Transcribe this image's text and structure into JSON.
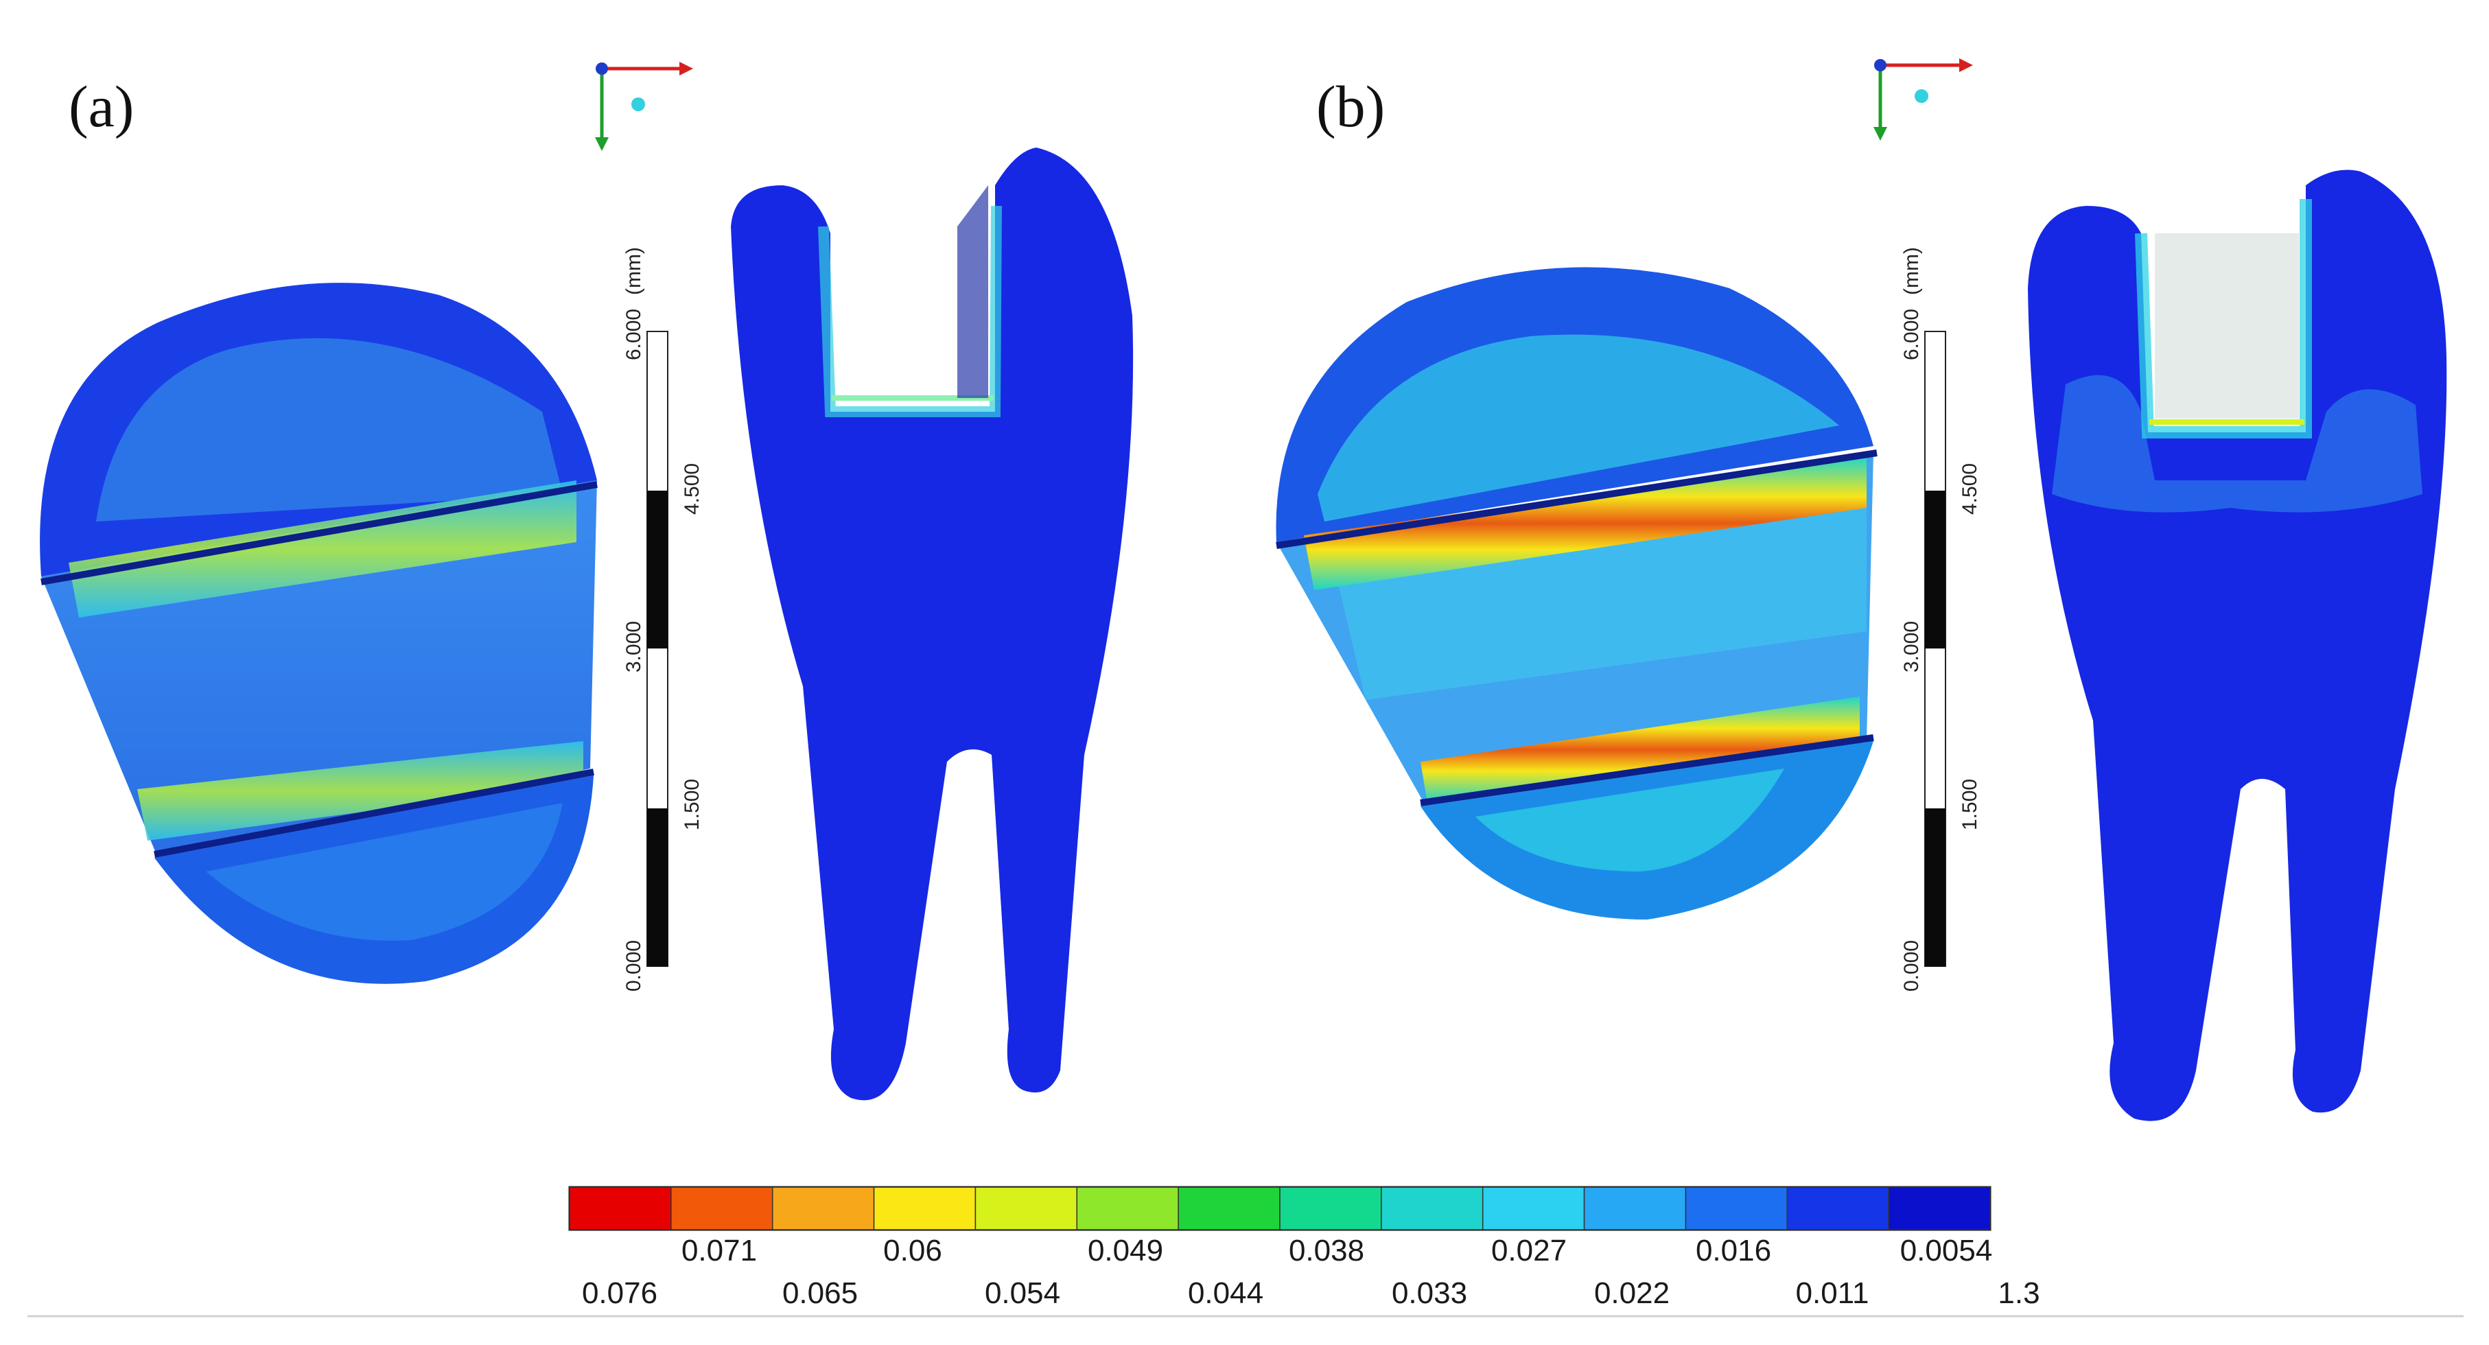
{
  "panels": [
    {
      "label": "(a)",
      "scale_unit": "(mm)",
      "scale_ticks": [
        "0.000",
        "1.500",
        "3.000",
        "4.500",
        "6.000"
      ]
    },
    {
      "label": "(b)",
      "scale_unit": "(mm)",
      "scale_ticks": [
        "0.000",
        "1.500",
        "3.000",
        "4.500",
        "6.000"
      ]
    }
  ],
  "colorbar": {
    "colors": [
      "#e60000",
      "#f25a0a",
      "#f7a81a",
      "#fbe713",
      "#d6f21a",
      "#8ee72a",
      "#1ed43a",
      "#12d98e",
      "#1ed4cc",
      "#2cd0f0",
      "#27a8f4",
      "#1c6ff0",
      "#1436e6",
      "#0a10cc"
    ],
    "upper_labels": [
      "0.071",
      "0.06",
      "0.049",
      "0.038",
      "0.027",
      "0.016",
      "0.0054"
    ],
    "lower_labels": [
      "0.076",
      "0.065",
      "0.054",
      "0.044",
      "0.033",
      "0.022",
      "0.011",
      "1.3"
    ]
  }
}
